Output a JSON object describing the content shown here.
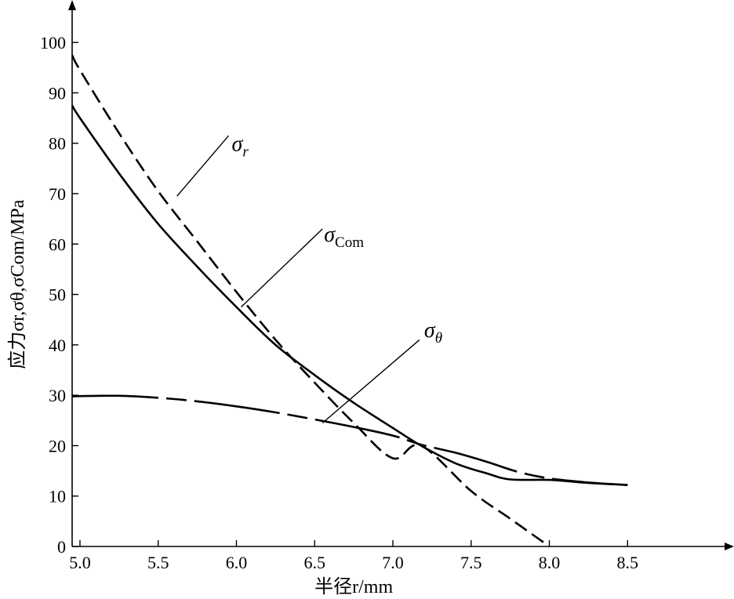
{
  "chart_data": {
    "type": "line",
    "xlabel": "半径r/mm",
    "ylabel": "应力σr,σθ,σCom/MPa",
    "xlim": [
      4.95,
      9.1
    ],
    "ylim": [
      0,
      105
    ],
    "x_ticks": [
      "5.0",
      "5.5",
      "6.0",
      "6.5",
      "7.0",
      "7.5",
      "8.0",
      "8.5"
    ],
    "y_ticks": [
      "0",
      "10",
      "20",
      "30",
      "40",
      "50",
      "60",
      "70",
      "80",
      "90",
      "100"
    ],
    "grid": false,
    "legend": "inline labels with leader lines",
    "series": [
      {
        "name": "σr",
        "label_symbol": "σ",
        "label_sub": "r",
        "style": "dashed",
        "x": [
          4.95,
          5.0,
          5.25,
          5.5,
          5.75,
          6.0,
          6.25,
          6.5,
          6.75,
          7.0,
          7.18,
          7.5,
          7.75,
          8.0
        ],
        "y": [
          97.5,
          94.5,
          82.0,
          70.5,
          60.5,
          50.5,
          41.0,
          32.5,
          24.5,
          17.5,
          20.0,
          11.0,
          5.5,
          0.0
        ]
      },
      {
        "name": "σCom",
        "label_symbol": "σ",
        "label_sub": "Com",
        "style": "solid",
        "x": [
          4.95,
          5.0,
          5.25,
          5.5,
          5.75,
          6.0,
          6.25,
          6.5,
          6.75,
          7.0,
          7.18,
          7.4,
          7.6,
          7.75,
          8.0,
          8.25,
          8.5
        ],
        "y": [
          87.5,
          85.0,
          74.0,
          64.0,
          55.5,
          47.5,
          40.0,
          34.0,
          28.5,
          23.5,
          20.0,
          16.5,
          14.5,
          13.3,
          13.2,
          12.6,
          12.2
        ]
      },
      {
        "name": "σθ",
        "label_symbol": "σ",
        "label_sub": "θ",
        "style": "dash-dot",
        "x": [
          4.95,
          5.25,
          5.5,
          5.75,
          6.0,
          6.25,
          6.5,
          6.75,
          7.0,
          7.18,
          7.4,
          7.6,
          7.8,
          8.0,
          8.25,
          8.5
        ],
        "y": [
          29.8,
          29.9,
          29.5,
          28.8,
          27.8,
          26.6,
          25.2,
          23.7,
          22.0,
          20.2,
          18.6,
          16.8,
          14.8,
          13.5,
          12.7,
          12.2
        ]
      }
    ]
  }
}
